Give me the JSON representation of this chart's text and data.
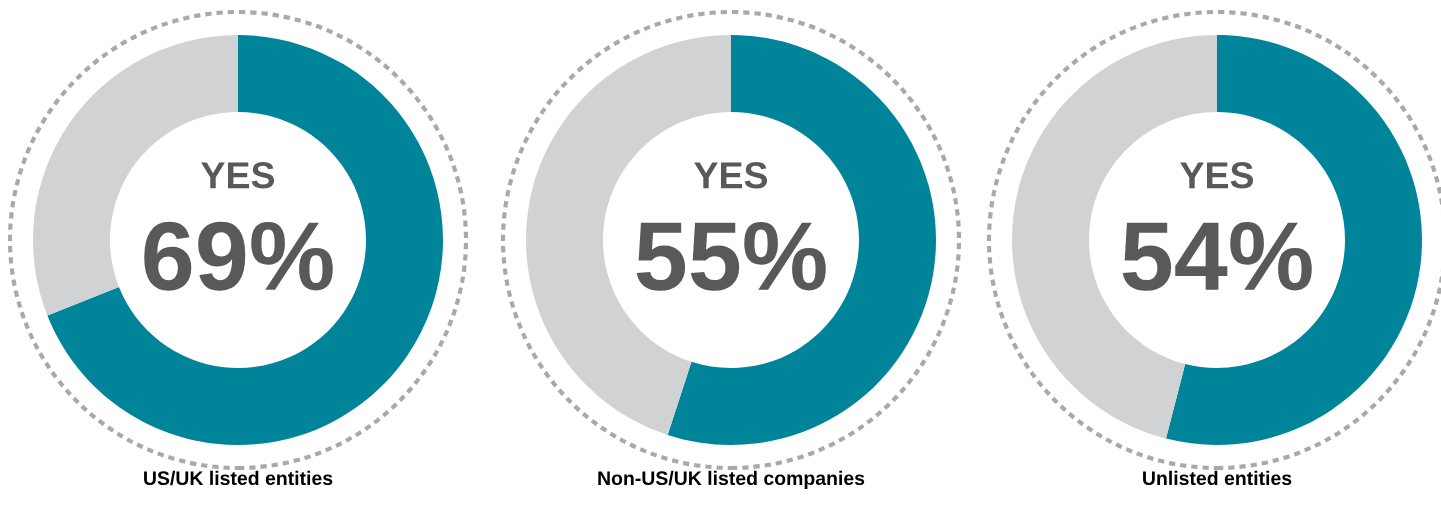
{
  "chart_data": [
    {
      "type": "donut",
      "title": "US/UK listed entities",
      "categories": [
        "YES",
        null
      ],
      "values": [
        69,
        31
      ],
      "colors": [
        "#00849a",
        "#d1d2d4"
      ],
      "value_labels": [
        "69%",
        null
      ]
    },
    {
      "type": "donut",
      "title": "Non-US/UK listed companies",
      "categories": [
        "YES",
        null
      ],
      "values": [
        55,
        45
      ],
      "colors": [
        "#00849a",
        "#d1d2d4"
      ],
      "value_labels": [
        "55%",
        null
      ]
    },
    {
      "type": "donut",
      "title": "Unlisted entities",
      "categories": [
        "YES",
        null
      ],
      "values": [
        54,
        46
      ],
      "colors": [
        "#00849a",
        "#d1d2d4"
      ],
      "value_labels": [
        "54%",
        null
      ]
    }
  ]
}
